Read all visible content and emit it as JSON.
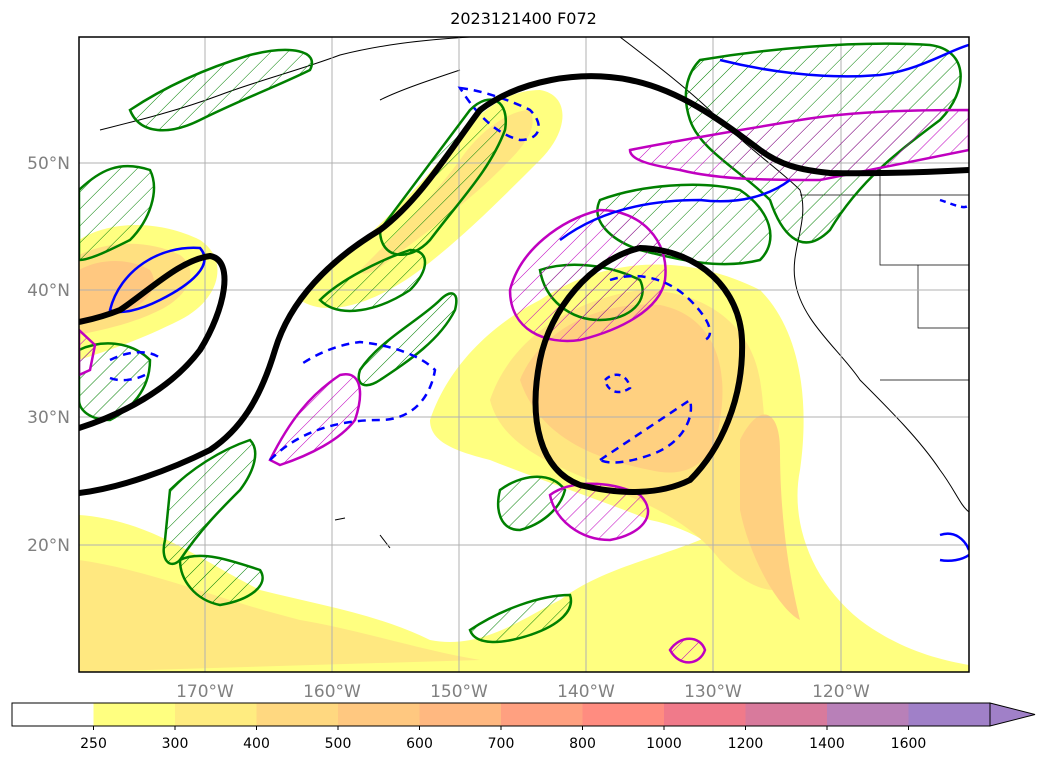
{
  "title": "2023121400 F072",
  "map": {
    "lat_labels": [
      "50°N",
      "40°N",
      "30°N",
      "20°N"
    ],
    "lon_labels": [
      "170°W",
      "160°W",
      "150°W",
      "140°W",
      "130°W",
      "120°W"
    ],
    "gridlines": true,
    "projection": "plate carree",
    "fill_colors": [
      "#ffff80",
      "#ffe680",
      "#ffcc80",
      "#ffb380",
      "#ffa080",
      "#ff9080",
      "#f08080",
      "#e07890",
      "#cc7aa0",
      "#b080c0",
      "#a080d0"
    ],
    "contour_colors": {
      "thick": "#000000",
      "hatched": "#008000",
      "blue": "#0000ff",
      "magenta": "#c000c0"
    }
  },
  "colorbar": {
    "labels": [
      "250",
      "300",
      "400",
      "500",
      "600",
      "700",
      "800",
      "1000",
      "1200",
      "1400",
      "1600"
    ],
    "colors": [
      "#ffffff",
      "#ffff80",
      "#ffec80",
      "#ffd880",
      "#ffc880",
      "#ffb880",
      "#ffa080",
      "#ff8c80",
      "#f07a8a",
      "#d87a9c",
      "#b880b8",
      "#a080c8"
    ],
    "extend": "max"
  }
}
